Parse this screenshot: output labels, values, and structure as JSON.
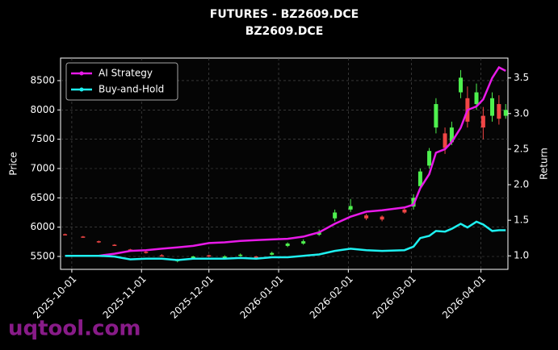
{
  "chart_data": {
    "type": "candlestick",
    "title": "FUTURES - BZ2609.DCE",
    "subtitle": "BZ2609.DCE",
    "watermark": "uqtool.com",
    "ylabel": "Price",
    "y2label": "Return",
    "x": [
      "2025-09-28",
      "2025-10-06",
      "2025-10-13",
      "2025-10-20",
      "2025-10-27",
      "2025-11-03",
      "2025-11-10",
      "2025-11-17",
      "2025-11-24",
      "2025-12-01",
      "2025-12-08",
      "2025-12-15",
      "2025-12-22",
      "2025-12-29",
      "2026-01-05",
      "2026-01-12",
      "2026-01-19",
      "2026-01-26",
      "2026-02-02",
      "2026-02-09",
      "2026-02-16",
      "2026-02-26",
      "2026-03-02",
      "2026-03-05",
      "2026-03-09",
      "2026-03-12",
      "2026-03-16",
      "2026-03-19",
      "2026-03-23",
      "2026-03-26",
      "2026-03-30",
      "2026-04-02",
      "2026-04-06",
      "2026-04-09",
      "2026-04-12"
    ],
    "open": [
      5880,
      5840,
      5760,
      5700,
      5620,
      5580,
      5520,
      5420,
      5470,
      5520,
      5490,
      5520,
      5500,
      5530,
      5680,
      5720,
      5870,
      6150,
      6300,
      6200,
      6180,
      6300,
      6350,
      6700,
      7050,
      7700,
      7600,
      7450,
      8300,
      8200,
      8100,
      7900,
      7900,
      8100,
      7900
    ],
    "high": [
      5890,
      5850,
      5770,
      5710,
      5630,
      5590,
      5540,
      5460,
      5510,
      5530,
      5520,
      5550,
      5510,
      5580,
      5740,
      5790,
      5960,
      6300,
      6480,
      6230,
      6200,
      6320,
      6560,
      7000,
      7350,
      8200,
      7700,
      7800,
      8680,
      8400,
      8450,
      8050,
      8300,
      8250,
      8100
    ],
    "low": [
      5860,
      5820,
      5730,
      5680,
      5590,
      5550,
      5500,
      5400,
      5450,
      5490,
      5480,
      5500,
      5470,
      5520,
      5660,
      5700,
      5850,
      6100,
      6260,
      6120,
      6100,
      6230,
      6300,
      6650,
      7000,
      7600,
      7250,
      7400,
      8200,
      7700,
      8000,
      7500,
      7800,
      7750,
      7850
    ],
    "close": [
      5870,
      5830,
      5740,
      5690,
      5600,
      5560,
      5510,
      5440,
      5500,
      5510,
      5500,
      5530,
      5480,
      5560,
      5720,
      5760,
      5920,
      6250,
      6360,
      6150,
      6130,
      6250,
      6500,
      6950,
      7300,
      8100,
      7350,
      7700,
      8550,
      7800,
      8300,
      7700,
      8200,
      7850,
      8000
    ],
    "up_color": "#4ef04e",
    "down_color": "#f04545",
    "series": [
      {
        "name": "AI Strategy",
        "color": "#e81ae8",
        "axis": "y2",
        "values": [
          1.0,
          1.0,
          1.0,
          1.03,
          1.07,
          1.08,
          1.1,
          1.12,
          1.14,
          1.18,
          1.19,
          1.21,
          1.22,
          1.23,
          1.24,
          1.27,
          1.33,
          1.45,
          1.55,
          1.62,
          1.64,
          1.68,
          1.72,
          1.95,
          2.15,
          2.45,
          2.5,
          2.6,
          2.8,
          3.05,
          3.1,
          3.2,
          3.5,
          3.65,
          3.6
        ]
      },
      {
        "name": "Buy-and-Hold",
        "color": "#1ef0f0",
        "axis": "y2",
        "values": [
          1.0,
          1.0,
          1.0,
          0.99,
          0.95,
          0.96,
          0.96,
          0.94,
          0.96,
          0.96,
          0.96,
          0.97,
          0.96,
          0.98,
          0.98,
          1.0,
          1.02,
          1.07,
          1.1,
          1.08,
          1.07,
          1.08,
          1.13,
          1.25,
          1.28,
          1.35,
          1.34,
          1.38,
          1.45,
          1.4,
          1.48,
          1.44,
          1.35,
          1.36,
          1.36
        ]
      }
    ],
    "xlim": [
      "2025-09-26",
      "2026-04-13"
    ],
    "xticks": [
      "2025-10-01",
      "2025-11-01",
      "2025-12-01",
      "2026-01-01",
      "2026-02-01",
      "2026-03-01",
      "2026-04-01"
    ],
    "ylim": [
      5280,
      8885
    ],
    "yticks": [
      5500,
      6000,
      6500,
      7000,
      7500,
      8000,
      8500
    ],
    "y2lim": [
      0.81,
      3.78
    ],
    "y2ticks": [
      {
        "value": 1,
        "label": "1.0"
      },
      1.5,
      {
        "value": 2,
        "label": "2.0"
      },
      2.5,
      {
        "value": 3,
        "label": "3.0"
      },
      3.5
    ],
    "grid": true,
    "legend": "upper left"
  }
}
